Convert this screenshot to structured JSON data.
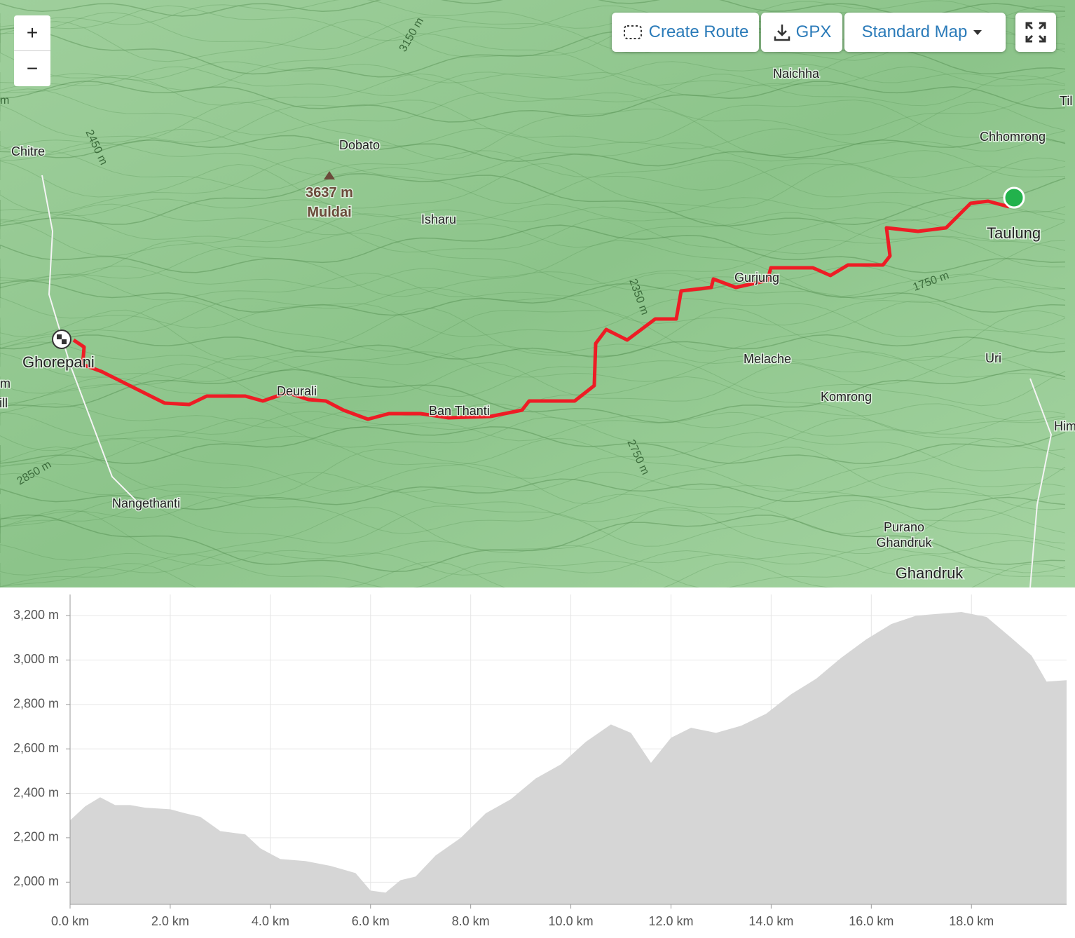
{
  "map": {
    "controls": {
      "zoom_in": "+",
      "zoom_out": "−"
    },
    "buttons": {
      "create_route": "Create Route",
      "gpx": "GPX",
      "map_style": "Standard Map"
    },
    "labels": [
      "Chitre",
      "Dobato",
      "3637 m",
      "Muldai",
      "Isharu",
      "Naichha",
      "Chhomrong",
      "Taulung",
      "Gurjung",
      "Melache",
      "Komrong",
      "Uri",
      "Ghorepani",
      "Deurali",
      "Ban Thanti",
      "Nangethanti",
      "Purano",
      "Ghandruk",
      "Ghandruk",
      "3150 m",
      "2450 m",
      "2350 m",
      "1750 m",
      "2750 m",
      "2850 m",
      "Til",
      "Him",
      "m",
      "m",
      "Hill"
    ]
  },
  "chart_data": {
    "type": "area",
    "color": "#d6d6d6",
    "grid": true,
    "x": [
      0,
      0.3,
      0.6,
      0.9,
      1.2,
      1.5,
      2.0,
      2.3,
      2.6,
      3.0,
      3.5,
      3.8,
      4.2,
      4.7,
      5.2,
      5.7,
      6.0,
      6.3,
      6.6,
      6.9,
      7.3,
      7.8,
      8.3,
      8.8,
      9.3,
      9.8,
      10.3,
      10.8,
      11.2,
      11.6,
      12.0,
      12.4,
      12.9,
      13.4,
      13.9,
      14.4,
      14.9,
      15.4,
      15.9,
      16.4,
      16.9,
      17.4,
      17.8,
      18.3,
      18.8,
      19.2,
      19.5,
      19.9
    ],
    "values": [
      2278,
      2341,
      2382,
      2347,
      2347,
      2335,
      2328,
      2310,
      2294,
      2230,
      2215,
      2152,
      2104,
      2095,
      2073,
      2041,
      1962,
      1953,
      2009,
      2025,
      2120,
      2199,
      2310,
      2373,
      2467,
      2530,
      2632,
      2710,
      2672,
      2537,
      2650,
      2695,
      2672,
      2704,
      2758,
      2846,
      2916,
      3010,
      3093,
      3162,
      3200,
      3209,
      3216,
      3194,
      3099,
      3020,
      2903,
      2909
    ],
    "xlim": [
      0,
      19.9
    ],
    "ylim": [
      1900,
      3295
    ],
    "xticks": [
      {
        "value": 0,
        "label": "0.0 km"
      },
      {
        "value": 2,
        "label": "2.0 km"
      },
      {
        "value": 4,
        "label": "4.0 km"
      },
      {
        "value": 6,
        "label": "6.0 km"
      },
      {
        "value": 8,
        "label": "8.0 km"
      },
      {
        "value": 10,
        "label": "10.0 km"
      },
      {
        "value": 12,
        "label": "12.0 km"
      },
      {
        "value": 14,
        "label": "14.0 km"
      },
      {
        "value": 16,
        "label": "16.0 km"
      },
      {
        "value": 18,
        "label": "18.0 km"
      }
    ],
    "yticks": [
      {
        "value": 2000,
        "label": "2,000 m"
      },
      {
        "value": 2200,
        "label": "2,200 m"
      },
      {
        "value": 2400,
        "label": "2,400 m"
      },
      {
        "value": 2600,
        "label": "2,600 m"
      },
      {
        "value": 2800,
        "label": "2,800 m"
      },
      {
        "value": 3000,
        "label": "3,000 m"
      },
      {
        "value": 3200,
        "label": "3,200 m"
      }
    ]
  }
}
